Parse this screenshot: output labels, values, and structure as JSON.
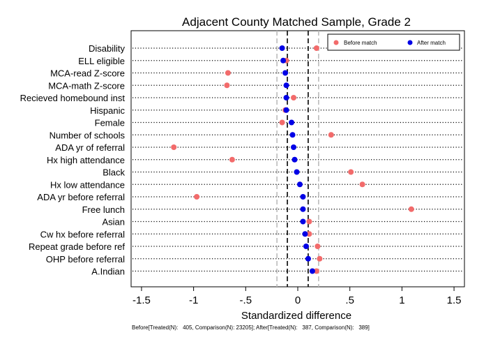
{
  "chart_data": {
    "type": "scatter",
    "title": "Adjacent County Matched Sample, Grade 2",
    "xlabel": "Standardized difference",
    "ylabel": "",
    "xlim": [
      -1.6,
      1.6
    ],
    "xticks": [
      -1.5,
      -1,
      -0.5,
      0,
      0.5,
      1,
      1.5
    ],
    "xtick_labels": [
      "-1.5",
      "-1",
      "-.5",
      "0",
      ".5",
      "1",
      "1.5"
    ],
    "grid": false,
    "legend_position": "top-right",
    "reference_lines": [
      {
        "x": -0.2,
        "style": "dashed",
        "color": "#bbbbbb"
      },
      {
        "x": -0.1,
        "style": "dashed",
        "color": "#000000"
      },
      {
        "x": 0.1,
        "style": "dashed",
        "color": "#000000"
      },
      {
        "x": 0.2,
        "style": "dashed",
        "color": "#bbbbbb"
      }
    ],
    "categories": [
      "Disability",
      "ELL eligible",
      "MCA-read Z-score",
      "MCA-math Z-score",
      "Recieved homebound inst",
      "Hispanic",
      "Female",
      "Number of schools",
      "ADA yr of referral",
      "Hx high attendance",
      "Black",
      "Hx low attendance",
      "ADA yr before referral",
      "Free lunch",
      "Asian",
      "Cw hx before referral",
      "Repeat grade before ref",
      "OHP before referral",
      "A.Indian"
    ],
    "series": [
      {
        "name": "Before match",
        "color": "#f26b6b",
        "values": [
          0.18,
          -0.11,
          -0.67,
          -0.68,
          -0.04,
          -0.12,
          -0.15,
          0.32,
          -1.19,
          -0.63,
          0.51,
          0.62,
          -0.97,
          1.09,
          0.11,
          0.11,
          0.19,
          0.21,
          0.18
        ]
      },
      {
        "name": "After match",
        "color": "#0000e6",
        "values": [
          -0.15,
          -0.14,
          -0.12,
          -0.11,
          -0.11,
          -0.11,
          -0.06,
          -0.05,
          -0.04,
          -0.03,
          -0.01,
          0.02,
          0.05,
          0.05,
          0.05,
          0.07,
          0.08,
          0.1,
          0.14
        ]
      }
    ],
    "footnote": "Before[Treated(N):   405, Comparison(N): 23205]; After[Treated(N):   387, Comparison(N):   389]"
  }
}
